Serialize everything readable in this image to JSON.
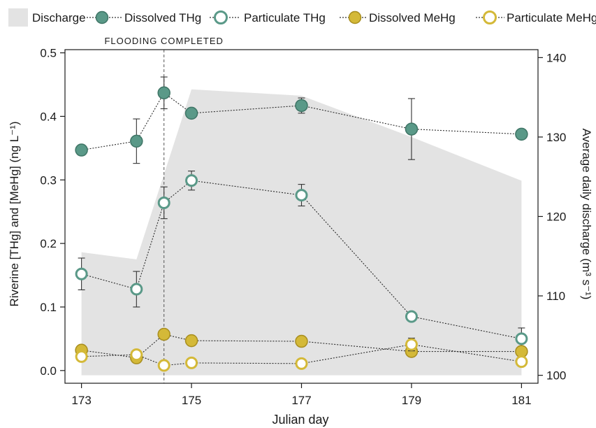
{
  "chart_data": {
    "type": "line",
    "xlabel": "Julian day",
    "ylabel_left": "Riverine [THg] and [MeHg] (ng L⁻¹)",
    "ylabel_right": "Average daily discharge (m³ s⁻¹)",
    "xlim": [
      172.7,
      181.3
    ],
    "ylim_left": [
      -0.02,
      0.505
    ],
    "ylim_right": [
      99,
      141
    ],
    "xticks": [
      173,
      175,
      177,
      179,
      181
    ],
    "yticks_left": [
      0.0,
      0.1,
      0.2,
      0.3,
      0.4,
      0.5
    ],
    "yticks_left_labels": [
      "0.0",
      "0.1",
      "0.2",
      "0.3",
      "0.4",
      "0.5"
    ],
    "yticks_right": [
      100,
      110,
      120,
      130,
      140
    ],
    "grid": false,
    "legend_position": "top",
    "annotation": {
      "x": 174.5,
      "label": "FLOODING COMPLETED"
    },
    "discharge": {
      "name": "Discharge",
      "axis": "right",
      "color": "#e3e3e3",
      "x": [
        173,
        174,
        175,
        177,
        179,
        181
      ],
      "y": [
        115.5,
        114.6,
        136.0,
        135.2,
        130.0,
        124.5
      ]
    },
    "series": [
      {
        "name": "Dissolved THg",
        "fill": "#5a9988",
        "stroke": "#3f7566",
        "filled": true,
        "x": [
          173,
          174,
          174.5,
          175,
          177,
          179,
          181
        ],
        "y": [
          0.347,
          0.361,
          0.437,
          0.405,
          0.417,
          0.38,
          0.372
        ],
        "err": [
          0,
          0.035,
          0.025,
          0,
          0.012,
          0.048,
          0
        ]
      },
      {
        "name": "Particulate THg",
        "fill": "#ffffff",
        "stroke": "#5a9988",
        "filled": false,
        "x": [
          173,
          174,
          174.5,
          175,
          177,
          179,
          181
        ],
        "y": [
          0.152,
          0.128,
          0.264,
          0.299,
          0.276,
          0.085,
          0.05
        ],
        "err": [
          0.025,
          0.028,
          0.025,
          0.015,
          0.017,
          0,
          0.017
        ]
      },
      {
        "name": "Dissolved MeHg",
        "fill": "#d4b938",
        "stroke": "#a88e1f",
        "filled": true,
        "x": [
          173,
          174,
          174.5,
          175,
          177,
          179,
          181
        ],
        "y": [
          0.032,
          0.02,
          0.057,
          0.047,
          0.046,
          0.03,
          0.03
        ],
        "err": [
          0,
          0,
          0,
          0,
          0,
          0,
          0
        ]
      },
      {
        "name": "Particulate MeHg",
        "fill": "#ffffff",
        "stroke": "#d4b938",
        "filled": false,
        "x": [
          173,
          174,
          174.5,
          175,
          177,
          179,
          181
        ],
        "y": [
          0.022,
          0.025,
          0.008,
          0.012,
          0.011,
          0.041,
          0.014
        ],
        "err": [
          0,
          0,
          0,
          0,
          0,
          0.01,
          0
        ]
      }
    ]
  }
}
